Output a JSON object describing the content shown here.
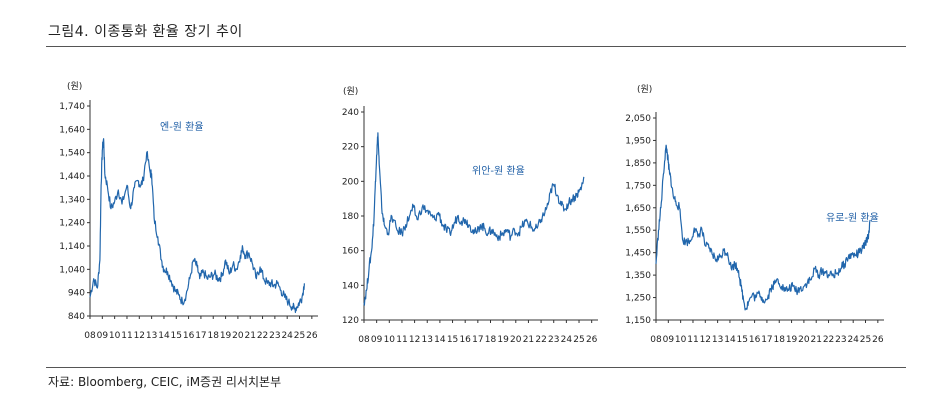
{
  "title": "그림4.  이종통화 환율 장기 추이",
  "source": "자료: Bloomberg, CEIC, iM증권 리서치본부",
  "colors": {
    "line": "#2166ac",
    "label": "#1f5fa6",
    "axis": "#333333"
  },
  "chart_data": [
    {
      "type": "line",
      "unit": "(원)",
      "series": [
        {
          "name": "엔-원 환율",
          "x": [
            2008.0,
            2008.3,
            2008.6,
            2008.8,
            2008.9,
            2009.0,
            2009.1,
            2009.2,
            2009.4,
            2009.7,
            2010.0,
            2010.3,
            2010.6,
            2011.0,
            2011.3,
            2011.6,
            2011.9,
            2012.1,
            2012.3,
            2012.6,
            2012.9,
            2013.0,
            2013.2,
            2013.5,
            2013.8,
            2014.0,
            2014.3,
            2014.6,
            2014.9,
            2015.2,
            2015.5,
            2015.8,
            2016.1,
            2016.4,
            2016.7,
            2016.9,
            2017.2,
            2017.5,
            2017.8,
            2018.1,
            2018.4,
            2018.7,
            2019.0,
            2019.3,
            2019.6,
            2019.9,
            2020.2,
            2020.4,
            2020.6,
            2020.9,
            2021.2,
            2021.5,
            2021.8,
            2022.1,
            2022.4,
            2022.7,
            2022.9,
            2023.2,
            2023.5,
            2023.8,
            2024.1,
            2024.4,
            2024.6,
            2024.8,
            2025.0,
            2025.2,
            2025.4
          ],
          "values": [
            920,
            1000,
            960,
            1080,
            1400,
            1550,
            1600,
            1450,
            1400,
            1300,
            1330,
            1380,
            1320,
            1400,
            1300,
            1390,
            1420,
            1400,
            1420,
            1540,
            1450,
            1450,
            1260,
            1180,
            1080,
            1040,
            1030,
            990,
            950,
            930,
            900,
            930,
            1000,
            1080,
            1050,
            1000,
            1030,
            1000,
            1010,
            1020,
            1000,
            1010,
            1080,
            1020,
            1060,
            1040,
            1100,
            1130,
            1100,
            1110,
            1060,
            1000,
            1050,
            1000,
            980,
            980,
            970,
            980,
            950,
            920,
            900,
            880,
            870,
            880,
            900,
            920,
            980
          ]
        }
      ],
      "ticks": [
        "08",
        "09",
        "10",
        "11",
        "12",
        "13",
        "14",
        "15",
        "16",
        "17",
        "18",
        "19",
        "20",
        "21",
        "22",
        "23",
        "24",
        "25",
        "26"
      ],
      "ylim": [
        840,
        1740
      ],
      "yticks": [
        "840",
        "940",
        "1,040",
        "1,140",
        "1,240",
        "1,340",
        "1,440",
        "1,540",
        "1,640",
        "1,740"
      ]
    },
    {
      "type": "line",
      "unit": "(원)",
      "series": [
        {
          "name": "위안-원 환율",
          "x": [
            2008.0,
            2008.2,
            2008.4,
            2008.6,
            2008.8,
            2008.9,
            2009.0,
            2009.1,
            2009.2,
            2009.4,
            2009.6,
            2009.9,
            2010.2,
            2010.6,
            2011.0,
            2011.3,
            2011.6,
            2011.9,
            2012.2,
            2012.6,
            2013.0,
            2013.3,
            2013.6,
            2013.9,
            2014.2,
            2014.5,
            2014.8,
            2015.1,
            2015.4,
            2015.7,
            2016.0,
            2016.3,
            2016.6,
            2016.9,
            2017.2,
            2017.5,
            2017.8,
            2018.1,
            2018.4,
            2018.7,
            2019.0,
            2019.3,
            2019.6,
            2019.9,
            2020.2,
            2020.5,
            2020.8,
            2021.1,
            2021.4,
            2021.7,
            2022.0,
            2022.3,
            2022.6,
            2022.8,
            2023.0,
            2023.3,
            2023.6,
            2023.9,
            2024.2,
            2024.5,
            2024.8,
            2025.0,
            2025.2,
            2025.4
          ],
          "values": [
            130,
            137,
            150,
            160,
            180,
            200,
            215,
            228,
            210,
            185,
            175,
            170,
            180,
            172,
            170,
            175,
            180,
            185,
            178,
            185,
            183,
            180,
            178,
            182,
            175,
            172,
            170,
            175,
            180,
            177,
            178,
            175,
            172,
            170,
            175,
            173,
            170,
            172,
            169,
            168,
            170,
            172,
            168,
            172,
            170,
            174,
            177,
            175,
            172,
            173,
            178,
            182,
            188,
            195,
            198,
            192,
            186,
            184,
            188,
            190,
            192,
            194,
            197,
            202
          ]
        }
      ],
      "ticks": [
        "08",
        "09",
        "10",
        "11",
        "12",
        "13",
        "14",
        "15",
        "16",
        "17",
        "18",
        "19",
        "20",
        "21",
        "22",
        "23",
        "24",
        "25",
        "26"
      ],
      "ylim": [
        120,
        240
      ],
      "yticks": [
        "120",
        "140",
        "160",
        "180",
        "200",
        "220",
        "240"
      ]
    },
    {
      "type": "line",
      "unit": "(원)",
      "series": [
        {
          "name": "유로-원 환율",
          "x": [
            2008.0,
            2008.2,
            2008.4,
            2008.6,
            2008.8,
            2008.9,
            2009.0,
            2009.1,
            2009.2,
            2009.4,
            2009.6,
            2009.9,
            2010.2,
            2010.5,
            2010.8,
            2011.1,
            2011.4,
            2011.7,
            2012.0,
            2012.3,
            2012.6,
            2012.9,
            2013.2,
            2013.5,
            2013.8,
            2014.1,
            2014.4,
            2014.7,
            2014.9,
            2015.1,
            2015.3,
            2015.5,
            2015.8,
            2016.1,
            2016.4,
            2016.7,
            2017.0,
            2017.3,
            2017.6,
            2017.9,
            2018.2,
            2018.5,
            2018.8,
            2019.1,
            2019.4,
            2019.7,
            2020.0,
            2020.3,
            2020.6,
            2020.9,
            2021.2,
            2021.5,
            2021.8,
            2022.1,
            2022.4,
            2022.7,
            2023.0,
            2023.3,
            2023.6,
            2023.9,
            2024.2,
            2024.5,
            2024.8,
            2025.0,
            2025.2,
            2025.4
          ],
          "values": [
            1400,
            1550,
            1650,
            1800,
            1920,
            1900,
            1850,
            1800,
            1780,
            1700,
            1680,
            1650,
            1500,
            1500,
            1500,
            1560,
            1520,
            1560,
            1480,
            1470,
            1440,
            1420,
            1430,
            1460,
            1450,
            1380,
            1400,
            1370,
            1300,
            1240,
            1200,
            1230,
            1260,
            1250,
            1270,
            1240,
            1240,
            1290,
            1310,
            1330,
            1300,
            1280,
            1290,
            1300,
            1280,
            1290,
            1300,
            1320,
            1330,
            1380,
            1350,
            1370,
            1360,
            1350,
            1350,
            1360,
            1380,
            1400,
            1430,
            1440,
            1440,
            1450,
            1470,
            1490,
            1520,
            1590
          ]
        }
      ],
      "ticks": [
        "08",
        "09",
        "10",
        "11",
        "12",
        "13",
        "14",
        "15",
        "16",
        "17",
        "18",
        "19",
        "20",
        "21",
        "22",
        "23",
        "24",
        "25",
        "26"
      ],
      "ylim": [
        1150,
        2050
      ],
      "yticks": [
        "1,150",
        "1,250",
        "1,350",
        "1,450",
        "1,550",
        "1,650",
        "1,750",
        "1,850",
        "1,950",
        "2,050"
      ]
    }
  ]
}
